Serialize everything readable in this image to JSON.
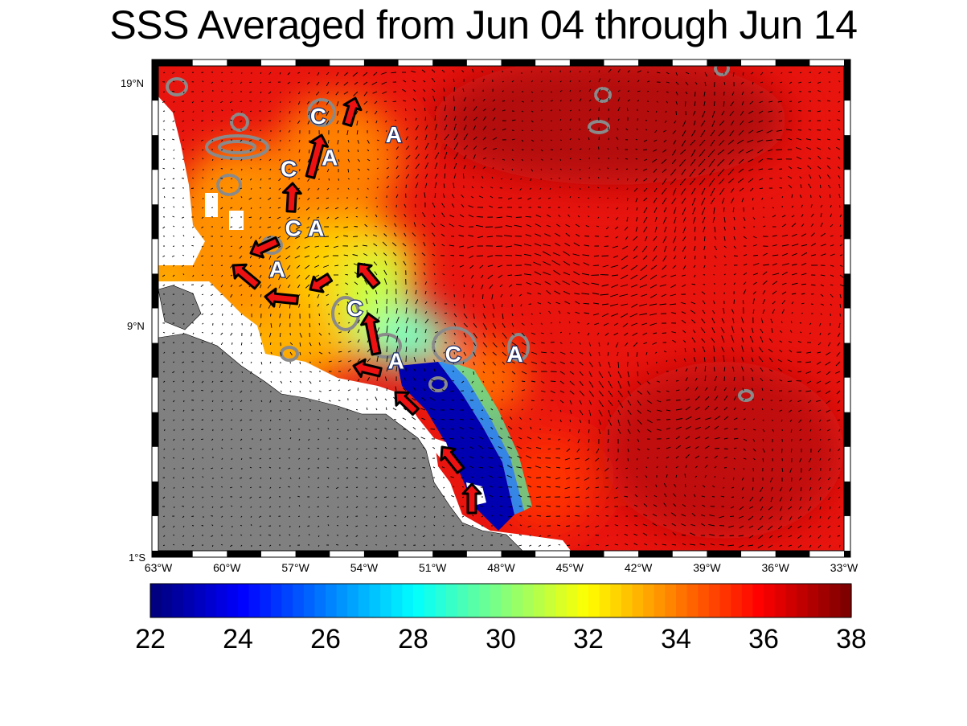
{
  "title": "SSS Averaged from Jun 04 through Jun 14",
  "map": {
    "type": "salinity-map",
    "lat_labels": [
      "19°N",
      "9°N",
      "1°S"
    ],
    "lon_labels": [
      "63°W",
      "60°W",
      "57°W",
      "54°W",
      "51°W",
      "48°W",
      "45°W",
      "42°W",
      "39°W",
      "36°W",
      "33°W"
    ],
    "eddies": [
      {
        "label": "C",
        "lon": -56,
        "lat": 18.0
      },
      {
        "label": "A",
        "lon": -52.7,
        "lat": 17.2
      },
      {
        "label": "A",
        "lon": -55.5,
        "lat": 16.2
      },
      {
        "label": "C",
        "lon": -57.3,
        "lat": 15.7
      },
      {
        "label": "A",
        "lon": -56.1,
        "lat": 13.1
      },
      {
        "label": "C",
        "lon": -57.1,
        "lat": 13.1
      },
      {
        "label": "A",
        "lon": -57.8,
        "lat": 11.3
      },
      {
        "label": "C",
        "lon": -54.4,
        "lat": 9.6
      },
      {
        "label": "A",
        "lon": -52.6,
        "lat": 7.3
      },
      {
        "label": "C",
        "lon": -50.1,
        "lat": 7.6
      },
      {
        "label": "A",
        "lon": -47.4,
        "lat": 7.6
      }
    ],
    "land_color": "#808080",
    "colormap": "jet"
  },
  "colorbar": {
    "min": 22,
    "max": 38,
    "tick_labels": [
      "22",
      "24",
      "26",
      "28",
      "30",
      "32",
      "34",
      "36",
      "38"
    ]
  }
}
